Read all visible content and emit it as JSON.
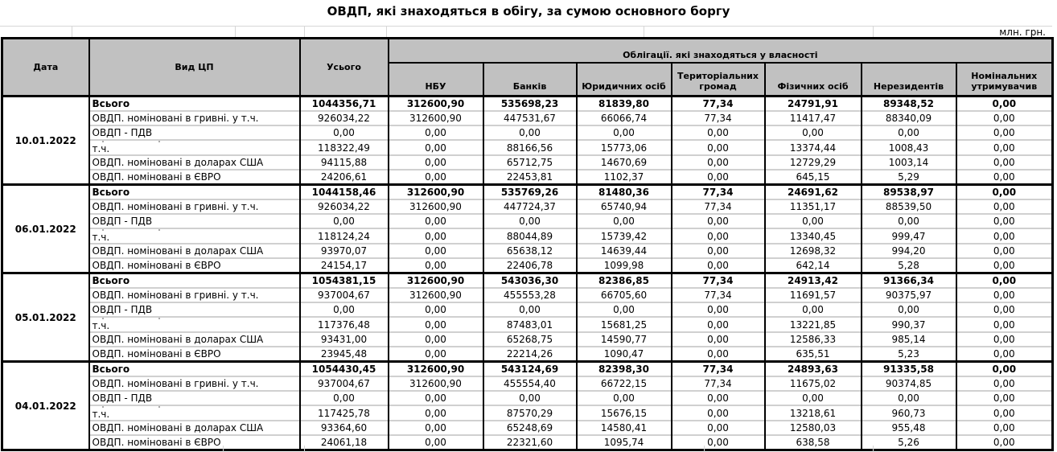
{
  "title": "ОВДП, які знаходяться в обігу, за сумою основного боргу",
  "unit_note": "млн. грн.",
  "table": {
    "columns": {
      "date": "Дата",
      "type": "Вид ЦП",
      "total": "Усього"
    },
    "group_header": "Облігації. які знаходяться у власності",
    "owner_columns": [
      "НБУ",
      "Банків",
      "Юридичних осіб",
      "Територіальних громад",
      "Фізичних осіб",
      "Нерезидентів",
      "Номінальних утримувачив"
    ],
    "blocks": [
      {
        "date": "10.01.2022",
        "rows": [
          {
            "label": "Всього",
            "bold": true,
            "values": [
              "1044356,71",
              "312600,90",
              "535698,23",
              "81839,80",
              "77,34",
              "24791,91",
              "89348,52",
              "0,00"
            ]
          },
          {
            "label": "ОВДП. номіновані в гривні. у т.ч.",
            "values": [
              "926034,22",
              "312600,90",
              "447531,67",
              "66066,74",
              "77,34",
              "11417,47",
              "88340,09",
              "0,00"
            ]
          },
          {
            "label": "ОВДП - ПДВ",
            "values": [
              "0,00",
              "0,00",
              "0,00",
              "0,00",
              "0,00",
              "0,00",
              "0,00",
              "0,00"
            ]
          },
          {
            "label": "т.ч.",
            "clipped": true,
            "values": [
              "118322,49",
              "0,00",
              "88166,56",
              "15773,06",
              "0,00",
              "13374,44",
              "1008,43",
              "0,00"
            ]
          },
          {
            "label": "ОВДП. номіновані в доларах США",
            "values": [
              "94115,88",
              "0,00",
              "65712,75",
              "14670,69",
              "0,00",
              "12729,29",
              "1003,14",
              "0,00"
            ]
          },
          {
            "label": "ОВДП. номіновані в ЄВРО",
            "values": [
              "24206,61",
              "0,00",
              "22453,81",
              "1102,37",
              "0,00",
              "645,15",
              "5,29",
              "0,00"
            ]
          }
        ]
      },
      {
        "date": "06.01.2022",
        "rows": [
          {
            "label": "Всього",
            "bold": true,
            "values": [
              "1044158,46",
              "312600,90",
              "535769,26",
              "81480,36",
              "77,34",
              "24691,62",
              "89538,97",
              "0,00"
            ]
          },
          {
            "label": "ОВДП. номіновані в гривні. у т.ч.",
            "values": [
              "926034,22",
              "312600,90",
              "447724,37",
              "65740,94",
              "77,34",
              "11351,17",
              "88539,50",
              "0,00"
            ]
          },
          {
            "label": "ОВДП - ПДВ",
            "values": [
              "0,00",
              "0,00",
              "0,00",
              "0,00",
              "0,00",
              "0,00",
              "0,00",
              "0,00"
            ]
          },
          {
            "label": "т.ч.",
            "clipped": true,
            "values": [
              "118124,24",
              "0,00",
              "88044,89",
              "15739,42",
              "0,00",
              "13340,45",
              "999,47",
              "0,00"
            ]
          },
          {
            "label": "ОВДП. номіновані в доларах США",
            "values": [
              "93970,07",
              "0,00",
              "65638,12",
              "14639,44",
              "0,00",
              "12698,32",
              "994,20",
              "0,00"
            ]
          },
          {
            "label": "ОВДП. номіновані в ЄВРО",
            "values": [
              "24154,17",
              "0,00",
              "22406,78",
              "1099,98",
              "0,00",
              "642,14",
              "5,28",
              "0,00"
            ]
          }
        ]
      },
      {
        "date": "05.01.2022",
        "rows": [
          {
            "label": "Всього",
            "bold": true,
            "values": [
              "1054381,15",
              "312600,90",
              "543036,30",
              "82386,85",
              "77,34",
              "24913,42",
              "91366,34",
              "0,00"
            ]
          },
          {
            "label": "ОВДП. номіновані в гривні. у т.ч.",
            "values": [
              "937004,67",
              "312600,90",
              "455553,28",
              "66705,60",
              "77,34",
              "11691,57",
              "90375,97",
              "0,00"
            ]
          },
          {
            "label": "ОВДП - ПДВ",
            "values": [
              "0,00",
              "0,00",
              "0,00",
              "0,00",
              "0,00",
              "0,00",
              "0,00",
              "0,00"
            ]
          },
          {
            "label": "т.ч.",
            "clipped": true,
            "values": [
              "117376,48",
              "0,00",
              "87483,01",
              "15681,25",
              "0,00",
              "13221,85",
              "990,37",
              "0,00"
            ]
          },
          {
            "label": "ОВДП. номіновані в доларах США",
            "values": [
              "93431,00",
              "0,00",
              "65268,75",
              "14590,77",
              "0,00",
              "12586,33",
              "985,14",
              "0,00"
            ]
          },
          {
            "label": "ОВДП. номіновані в ЄВРО",
            "values": [
              "23945,48",
              "0,00",
              "22214,26",
              "1090,47",
              "0,00",
              "635,51",
              "5,23",
              "0,00"
            ]
          }
        ]
      },
      {
        "date": "04.01.2022",
        "rows": [
          {
            "label": "Всього",
            "bold": true,
            "values": [
              "1054430,45",
              "312600,90",
              "543124,69",
              "82398,30",
              "77,34",
              "24893,63",
              "91335,58",
              "0,00"
            ]
          },
          {
            "label": "ОВДП. номіновані в гривні. у т.ч.",
            "values": [
              "937004,67",
              "312600,90",
              "455554,40",
              "66722,15",
              "77,34",
              "11675,02",
              "90374,85",
              "0,00"
            ]
          },
          {
            "label": "ОВДП - ПДВ",
            "values": [
              "0,00",
              "0,00",
              "0,00",
              "0,00",
              "0,00",
              "0,00",
              "0,00",
              "0,00"
            ]
          },
          {
            "label": "т.ч.",
            "clipped": true,
            "values": [
              "117425,78",
              "0,00",
              "87570,29",
              "15676,15",
              "0,00",
              "13218,61",
              "960,73",
              "0,00"
            ]
          },
          {
            "label": "ОВДП. номіновані в доларах США",
            "values": [
              "93364,60",
              "0,00",
              "65248,69",
              "14580,41",
              "0,00",
              "12580,03",
              "955,48",
              "0,00"
            ]
          },
          {
            "label": "ОВДП. номіновані в ЄВРО",
            "values": [
              "24061,18",
              "0,00",
              "22321,60",
              "1095,74",
              "0,00",
              "638,58",
              "5,26",
              "0,00"
            ]
          }
        ]
      }
    ]
  },
  "colors": {
    "header_bg": "#c1c1c1",
    "border_dark": "#000000",
    "grid_light": "#d0d0d0"
  }
}
